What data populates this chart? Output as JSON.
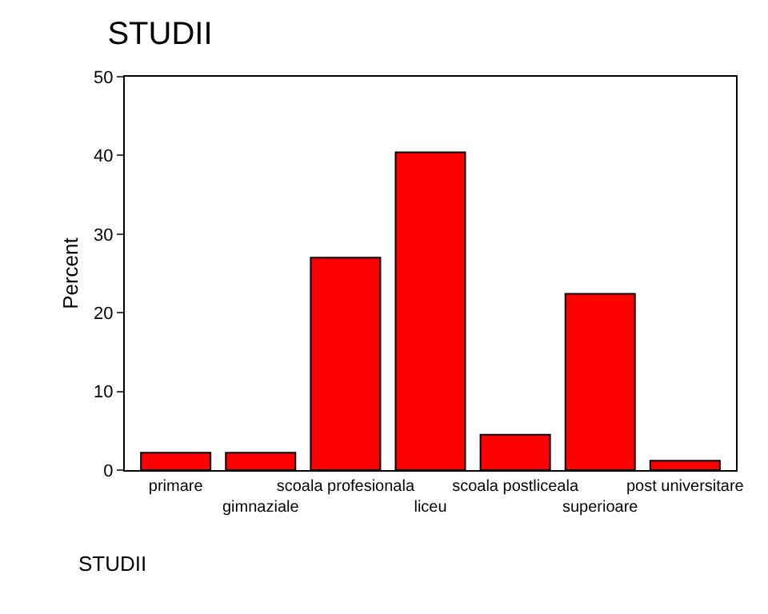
{
  "chart_data": {
    "type": "bar",
    "title": "STUDII",
    "xlabel": "STUDII",
    "ylabel": "Percent",
    "categories": [
      "primare",
      "gimnaziale",
      "scoala profesionala",
      "liceu",
      "scoala postliceala",
      "superioare",
      "post universitare"
    ],
    "values": [
      2.2,
      2.2,
      27.0,
      40.4,
      4.5,
      22.4,
      1.2
    ],
    "color": "#ff0000",
    "ylim": [
      0,
      50
    ],
    "yticks": [
      0,
      10,
      20,
      30,
      40,
      50
    ]
  }
}
